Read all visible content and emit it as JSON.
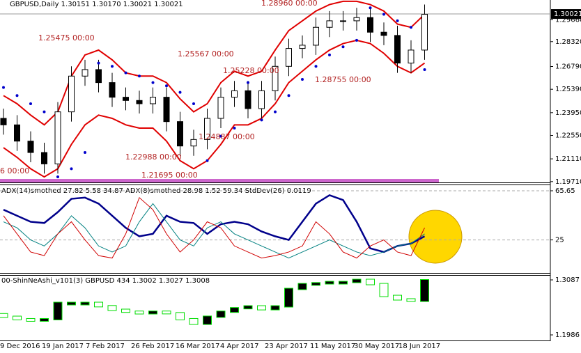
{
  "chart_data": [
    {
      "type": "candlestick",
      "title": "GBPUSD,Daily  1.30151 1.30170 1.30021 1.30021",
      "open": [
        1.236,
        1.232,
        1.222,
        1.215,
        1.208,
        1.24,
        1.262,
        1.266,
        1.258,
        1.249,
        1.247,
        1.245,
        1.249,
        1.234,
        1.219,
        1.223,
        1.236,
        1.249,
        1.253,
        1.242,
        1.253,
        1.268,
        1.279,
        1.281,
        1.292,
        1.296,
        1.296,
        1.298,
        1.289,
        1.287,
        1.27,
        1.278
      ],
      "high": [
        1.242,
        1.238,
        1.228,
        1.221,
        1.246,
        1.268,
        1.272,
        1.272,
        1.264,
        1.255,
        1.253,
        1.255,
        1.255,
        1.24,
        1.229,
        1.242,
        1.255,
        1.259,
        1.259,
        1.259,
        1.274,
        1.285,
        1.287,
        1.298,
        1.302,
        1.302,
        1.304,
        1.304,
        1.295,
        1.293,
        1.284,
        1.306
      ],
      "low": [
        1.226,
        1.216,
        1.209,
        1.202,
        1.202,
        1.234,
        1.256,
        1.252,
        1.243,
        1.241,
        1.239,
        1.239,
        1.228,
        1.213,
        1.213,
        1.217,
        1.23,
        1.243,
        1.236,
        1.236,
        1.247,
        1.262,
        1.273,
        1.275,
        1.286,
        1.29,
        1.29,
        1.283,
        1.281,
        1.264,
        1.264,
        1.272
      ],
      "close": [
        1.232,
        1.222,
        1.215,
        1.208,
        1.24,
        1.262,
        1.266,
        1.258,
        1.249,
        1.247,
        1.245,
        1.249,
        1.234,
        1.219,
        1.223,
        1.236,
        1.249,
        1.253,
        1.242,
        1.253,
        1.268,
        1.279,
        1.281,
        1.292,
        1.296,
        1.296,
        1.298,
        1.289,
        1.287,
        1.27,
        1.278,
        1.3
      ],
      "series": [
        {
          "color": "#e00000",
          "values": [
            1.25,
            1.245,
            1.238,
            1.232,
            1.24,
            1.262,
            1.275,
            1.278,
            1.272,
            1.264,
            1.262,
            1.262,
            1.258,
            1.248,
            1.24,
            1.245,
            1.258,
            1.265,
            1.262,
            1.265,
            1.278,
            1.29,
            1.296,
            1.302,
            1.306,
            1.308,
            1.308,
            1.306,
            1.302,
            1.294,
            1.292,
            1.3
          ]
        },
        {
          "color": "#e00000",
          "values": [
            1.218,
            1.212,
            1.205,
            1.2,
            1.205,
            1.22,
            1.232,
            1.238,
            1.236,
            1.232,
            1.23,
            1.23,
            1.222,
            1.21,
            1.205,
            1.21,
            1.22,
            1.232,
            1.232,
            1.236,
            1.245,
            1.258,
            1.265,
            1.272,
            1.278,
            1.282,
            1.284,
            1.282,
            1.276,
            1.268,
            1.264,
            1.27
          ]
        }
      ],
      "sar": {
        "color": "#0000cc",
        "values": [
          1.255,
          1.25,
          1.245,
          1.24,
          1.2,
          1.205,
          1.215,
          1.27,
          1.268,
          1.264,
          1.262,
          1.258,
          1.256,
          1.252,
          1.245,
          1.21,
          1.225,
          1.23,
          1.258,
          1.235,
          1.24,
          1.25,
          1.26,
          1.268,
          1.275,
          1.28,
          1.284,
          1.304,
          1.3,
          1.296,
          1.292,
          1.266
        ]
      },
      "current_price": 1.30021,
      "ylim": [
        1.1966,
        1.3088
      ],
      "yticks": [
        {
          "value": 1.2966,
          "label": "1.29660"
        },
        {
          "value": 1.2832,
          "label": "1.28320"
        },
        {
          "value": 1.2679,
          "label": "1.26790"
        },
        {
          "value": 1.2539,
          "label": "1.25390"
        },
        {
          "value": 1.2395,
          "label": "1.23950"
        },
        {
          "value": 1.2255,
          "label": "1.22550"
        },
        {
          "value": 1.2111,
          "label": "1.21110"
        },
        {
          "value": 1.1971,
          "label": "1.19710"
        }
      ],
      "annotations": [
        "1.25475 00:00",
        "1.25567 00:00",
        "1.25228 00:00",
        "1.28960 00:00",
        "1.28755 00:00",
        "1.22988 00:00",
        "1.24887 00:00",
        "1.21695 00:00",
        "6 00:00"
      ],
      "date_labels": [
        "9 Dec 2016",
        "19 Jan 2017",
        "7 Feb 2017",
        "26 Feb 2017",
        "16 Mar 2017",
        "4 Apr 2017",
        "23 Apr 2017",
        "11 May 2017",
        "30 May 2017",
        "18 Jun 2017"
      ]
    },
    {
      "type": "line",
      "title": "ADX(14)smothed 27.82 5.58 34.87  ADX(8)smothed 28.98 1.52 59.34  StdDev(26) 0.0119",
      "series": [
        {
          "color": "#00008b",
          "values": [
            50,
            45,
            40,
            39,
            48,
            59,
            60,
            55,
            45,
            35,
            28,
            30,
            45,
            40,
            39,
            30,
            38,
            40,
            38,
            32,
            28,
            25,
            40,
            55,
            62,
            58,
            40,
            18,
            15,
            20,
            22,
            28
          ]
        },
        {
          "color": "#008080",
          "values": [
            40,
            35,
            25,
            20,
            30,
            45,
            35,
            20,
            15,
            20,
            40,
            55,
            40,
            25,
            20,
            35,
            40,
            30,
            25,
            20,
            15,
            10,
            15,
            20,
            25,
            20,
            15,
            12,
            15,
            20,
            22,
            30
          ]
        },
        {
          "color": "#d00000",
          "values": [
            45,
            30,
            15,
            12,
            30,
            40,
            25,
            12,
            10,
            30,
            60,
            50,
            30,
            15,
            25,
            40,
            35,
            20,
            15,
            10,
            12,
            15,
            20,
            40,
            30,
            15,
            10,
            20,
            25,
            15,
            12,
            35
          ]
        }
      ],
      "ylim": [
        0,
        65.65
      ],
      "yticks": [
        65.65,
        25
      ]
    },
    {
      "type": "heikin-ashi",
      "title": "00-ShinNeAshi_v101(3) GBPUSD 434 1.3002 1.3027 1.3008",
      "open": [
        1.24,
        1.2348,
        1.23,
        1.2279,
        1.23,
        1.2627,
        1.2627,
        1.2627,
        1.256,
        1.2488,
        1.245,
        1.2418,
        1.245,
        1.242,
        1.23,
        1.2209,
        1.235,
        1.245,
        1.252,
        1.2557,
        1.25,
        1.2557,
        1.2906,
        1.3003,
        1.302,
        1.3045,
        1.3045,
        1.3087,
        1.3003,
        1.2766,
        1.2697,
        1.2669
      ],
      "close": [
        1.2348,
        1.23,
        1.2279,
        1.23,
        1.2627,
        1.2627,
        1.2627,
        1.256,
        1.2488,
        1.245,
        1.2418,
        1.245,
        1.242,
        1.23,
        1.2209,
        1.235,
        1.245,
        1.252,
        1.2557,
        1.25,
        1.2557,
        1.2906,
        1.3003,
        1.302,
        1.3045,
        1.3045,
        1.3087,
        1.3003,
        1.2766,
        1.2697,
        1.2669,
        1.308
      ],
      "color": "#00dd00",
      "ylim": [
        1.1986,
        1.3087
      ],
      "yticks": [
        1.3087,
        1.1986
      ]
    }
  ]
}
